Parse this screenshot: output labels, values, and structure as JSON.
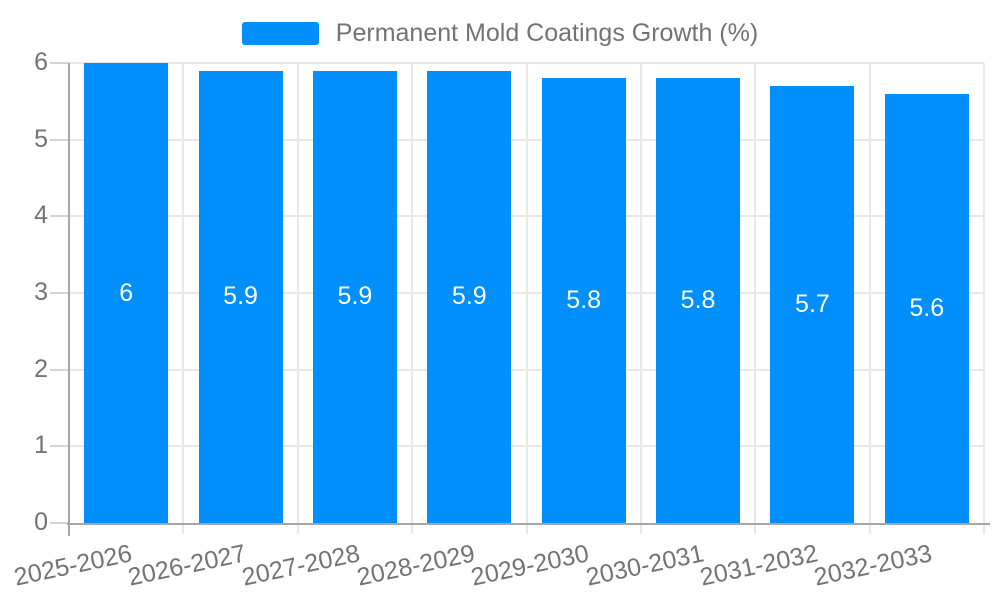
{
  "chart_data": {
    "type": "bar",
    "title": "",
    "legend": {
      "label": "Permanent Mold Coatings Growth (%)",
      "position": "top"
    },
    "categories": [
      "2025-2026",
      "2026-2027",
      "2027-2028",
      "2028-2029",
      "2029-2030",
      "2030-2031",
      "2031-2032",
      "2032-2033"
    ],
    "series": [
      {
        "name": "Permanent Mold Coatings Growth (%)",
        "values": [
          6,
          5.9,
          5.9,
          5.9,
          5.8,
          5.8,
          5.7,
          5.6
        ]
      }
    ],
    "data_labels": [
      "6",
      "5.9",
      "5.9",
      "5.9",
      "5.8",
      "5.8",
      "5.7",
      "5.6"
    ],
    "xlabel": "",
    "ylabel": "",
    "ylim": [
      0,
      6
    ],
    "yticks": [
      0,
      1,
      2,
      3,
      4,
      5,
      6
    ],
    "grid": true,
    "colors": {
      "bar": "#008FFB",
      "bar_label_text": "#ffffff",
      "grid_line": "#e8e8e8",
      "tick_mark": "#d4d4d4",
      "axis_line": "#a6a6a6",
      "tick_text": "#737373",
      "legend_text": "#737373"
    }
  }
}
